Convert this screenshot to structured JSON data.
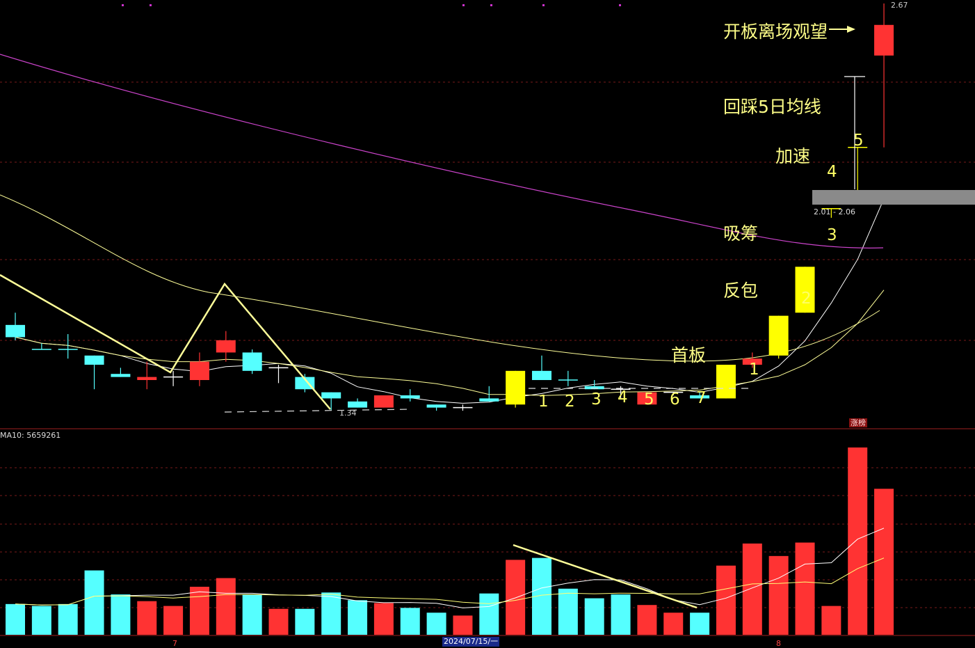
{
  "colors": {
    "up": "#ff3333",
    "down": "#55ffff",
    "limit_up": "#ffff00",
    "ma5": "#ffffff",
    "ma10": "#ffff99",
    "ma_long": "#cc44cc",
    "grid": "#7a1a1a",
    "annotation": "#ffff88"
  },
  "price_panel": {
    "high_label": "2.67",
    "low_label": "1.34",
    "zone_label": "2.01 - 2.06"
  },
  "volume_panel": {
    "ma_label": "MA10: 5659261",
    "tag": "涨榜"
  },
  "x_axis": {
    "date": "2024/07/15/一",
    "month_7": "7",
    "month_8": "8"
  },
  "annotations": {
    "open_leave": "开板离场观望",
    "pullback": "回踩5日均线",
    "accelerate": "加速",
    "absorb": "吸筹",
    "engulf": "反包",
    "first_board": "首板"
  },
  "pattern_numbers": [
    "1",
    "2",
    "3",
    "4",
    "5",
    "6",
    "7"
  ],
  "board_numbers": [
    "1",
    "2",
    "3",
    "4",
    "5"
  ],
  "chart_data": {
    "type": "candlestick",
    "candles": [
      {
        "o": 1.62,
        "h": 1.66,
        "l": 1.57,
        "c": 1.58,
        "color": "down"
      },
      {
        "o": 1.54,
        "h": 1.56,
        "l": 1.54,
        "c": 1.54,
        "color": "down"
      },
      {
        "o": 1.54,
        "h": 1.59,
        "l": 1.51,
        "c": 1.54,
        "color": "down"
      },
      {
        "o": 1.52,
        "h": 1.52,
        "l": 1.41,
        "c": 1.49,
        "color": "down"
      },
      {
        "o": 1.46,
        "h": 1.48,
        "l": 1.45,
        "c": 1.45,
        "color": "down"
      },
      {
        "o": 1.44,
        "h": 1.5,
        "l": 1.41,
        "c": 1.45,
        "color": "up"
      },
      {
        "o": 1.45,
        "h": 1.47,
        "l": 1.42,
        "c": 1.45,
        "color": "cross"
      },
      {
        "o": 1.44,
        "h": 1.53,
        "l": 1.42,
        "c": 1.5,
        "color": "up"
      },
      {
        "o": 1.53,
        "h": 1.6,
        "l": 1.5,
        "c": 1.57,
        "color": "up"
      },
      {
        "o": 1.53,
        "h": 1.54,
        "l": 1.46,
        "c": 1.47,
        "color": "down"
      },
      {
        "o": 1.48,
        "h": 1.49,
        "l": 1.43,
        "c": 1.48,
        "color": "cross"
      },
      {
        "o": 1.45,
        "h": 1.46,
        "l": 1.4,
        "c": 1.41,
        "color": "down"
      },
      {
        "o": 1.4,
        "h": 1.4,
        "l": 1.34,
        "c": 1.38,
        "color": "down"
      },
      {
        "o": 1.37,
        "h": 1.38,
        "l": 1.35,
        "c": 1.35,
        "color": "down"
      },
      {
        "o": 1.35,
        "h": 1.39,
        "l": 1.35,
        "c": 1.39,
        "color": "up"
      },
      {
        "o": 1.39,
        "h": 1.41,
        "l": 1.37,
        "c": 1.38,
        "color": "down"
      },
      {
        "o": 1.36,
        "h": 1.36,
        "l": 1.34,
        "c": 1.35,
        "color": "down"
      },
      {
        "o": 1.35,
        "h": 1.36,
        "l": 1.34,
        "c": 1.35,
        "color": "cross"
      },
      {
        "o": 1.38,
        "h": 1.42,
        "l": 1.37,
        "c": 1.37,
        "color": "down"
      },
      {
        "o": 1.36,
        "h": 1.47,
        "l": 1.35,
        "c": 1.47,
        "color": "limit_up"
      },
      {
        "o": 1.47,
        "h": 1.52,
        "l": 1.44,
        "c": 1.44,
        "color": "down"
      },
      {
        "o": 1.44,
        "h": 1.47,
        "l": 1.42,
        "c": 1.44,
        "color": "down"
      },
      {
        "o": 1.42,
        "h": 1.44,
        "l": 1.41,
        "c": 1.41,
        "color": "down"
      },
      {
        "o": 1.41,
        "h": 1.42,
        "l": 1.38,
        "c": 1.41,
        "color": "cross"
      },
      {
        "o": 1.36,
        "h": 1.4,
        "l": 1.36,
        "c": 1.4,
        "color": "up"
      },
      {
        "o": 1.4,
        "h": 1.4,
        "l": 1.39,
        "c": 1.4,
        "color": "cross"
      },
      {
        "o": 1.39,
        "h": 1.4,
        "l": 1.38,
        "c": 1.38,
        "color": "down"
      },
      {
        "o": 1.38,
        "h": 1.49,
        "l": 1.38,
        "c": 1.49,
        "color": "limit_up"
      },
      {
        "o": 1.49,
        "h": 1.53,
        "l": 1.48,
        "c": 1.51,
        "color": "up"
      },
      {
        "o": 1.52,
        "h": 1.65,
        "l": 1.51,
        "c": 1.65,
        "color": "limit_up"
      },
      {
        "o": 1.66,
        "h": 1.81,
        "l": 1.66,
        "c": 1.81,
        "color": "limit_up"
      },
      {
        "o": 2.0,
        "h": 2.0,
        "l": 1.97,
        "c": 2.0,
        "color": "limit_up"
      },
      {
        "o": 2.2,
        "h": 2.2,
        "l": 2.06,
        "c": 2.2,
        "color": "limit_up"
      },
      {
        "o": 2.6,
        "h": 2.67,
        "l": 2.2,
        "c": 2.5,
        "color": "up"
      }
    ],
    "volumes": [
      {
        "v": 3.2,
        "color": "down"
      },
      {
        "v": 3.0,
        "color": "down"
      },
      {
        "v": 3.2,
        "color": "down"
      },
      {
        "v": 6.7,
        "color": "down"
      },
      {
        "v": 4.2,
        "color": "down"
      },
      {
        "v": 3.5,
        "color": "up"
      },
      {
        "v": 3.0,
        "color": "up"
      },
      {
        "v": 5.0,
        "color": "up"
      },
      {
        "v": 5.9,
        "color": "up"
      },
      {
        "v": 4.2,
        "color": "down"
      },
      {
        "v": 2.7,
        "color": "up"
      },
      {
        "v": 2.7,
        "color": "down"
      },
      {
        "v": 4.4,
        "color": "down"
      },
      {
        "v": 3.6,
        "color": "down"
      },
      {
        "v": 3.3,
        "color": "up"
      },
      {
        "v": 2.8,
        "color": "down"
      },
      {
        "v": 2.3,
        "color": "down"
      },
      {
        "v": 2.0,
        "color": "up"
      },
      {
        "v": 4.3,
        "color": "down"
      },
      {
        "v": 7.8,
        "color": "up"
      },
      {
        "v": 8.0,
        "color": "down"
      },
      {
        "v": 4.8,
        "color": "down"
      },
      {
        "v": 3.8,
        "color": "down"
      },
      {
        "v": 4.2,
        "color": "down"
      },
      {
        "v": 3.1,
        "color": "up"
      },
      {
        "v": 2.3,
        "color": "up"
      },
      {
        "v": 2.3,
        "color": "down"
      },
      {
        "v": 7.2,
        "color": "up"
      },
      {
        "v": 9.5,
        "color": "up"
      },
      {
        "v": 8.2,
        "color": "up"
      },
      {
        "v": 9.6,
        "color": "up"
      },
      {
        "v": 3.0,
        "color": "up"
      },
      {
        "v": 19.5,
        "color": "up"
      },
      {
        "v": 15.2,
        "color": "up"
      }
    ],
    "x_dates": [
      "7",
      "2024/07/15/一",
      "8"
    ]
  }
}
